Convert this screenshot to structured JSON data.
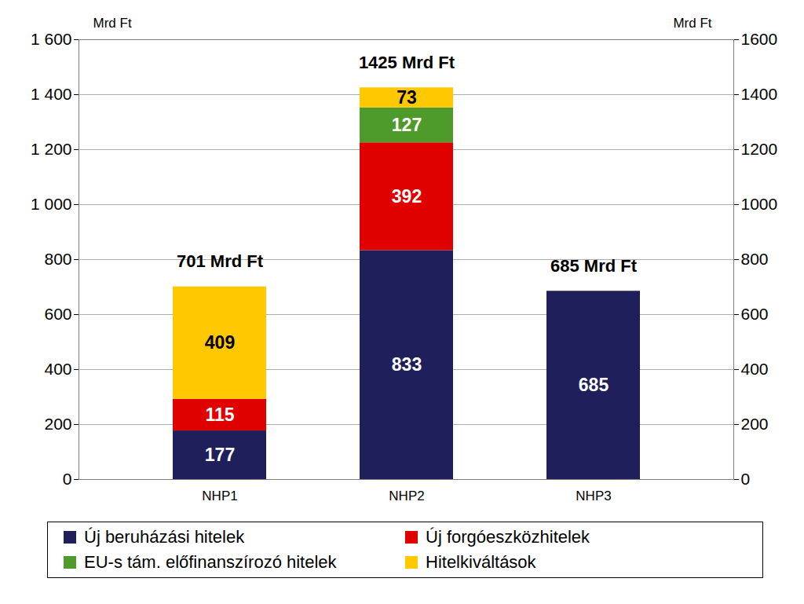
{
  "chart_data": {
    "type": "bar",
    "stacked": true,
    "data_labels": true,
    "grid": true,
    "legend": "bottom",
    "y_label": "Mrd Ft",
    "y2_label": "Mrd Ft",
    "categories": [
      "NHP1",
      "NHP2",
      "NHP3"
    ],
    "series": [
      {
        "name": "Új beruházási hitelek",
        "color": "#1F1F5C",
        "values": [
          177,
          833,
          685
        ]
      },
      {
        "name": "Új forgóeszközhitelek",
        "color": "#E00000",
        "values": [
          115,
          392,
          null
        ]
      },
      {
        "name": "EU-s tám. előfinanszírozó hitelek",
        "color": "#4E9A2A",
        "values": [
          null,
          127,
          null
        ]
      },
      {
        "name": "Hitelkiváltások",
        "color": "#FFC800",
        "values": [
          409,
          73,
          null
        ]
      }
    ],
    "totals": [
      {
        "value": 701,
        "label": "701 Mrd Ft"
      },
      {
        "value": 1425,
        "label": "1425 Mrd Ft"
      },
      {
        "value": 685,
        "label": "685 Mrd Ft"
      }
    ],
    "ylim": [
      0,
      1600
    ],
    "yticks": [
      0,
      200,
      400,
      600,
      800,
      {
        "value": 1000,
        "label": "1 000"
      },
      {
        "value": 1200,
        "label": "1 200"
      },
      {
        "value": 1400,
        "label": "1 400"
      },
      {
        "value": 1600,
        "label": "1 600"
      }
    ],
    "y2lim": [
      0,
      1600
    ],
    "y2ticks": [
      0,
      200,
      400,
      600,
      800,
      1000,
      1200,
      1400,
      1600
    ]
  }
}
